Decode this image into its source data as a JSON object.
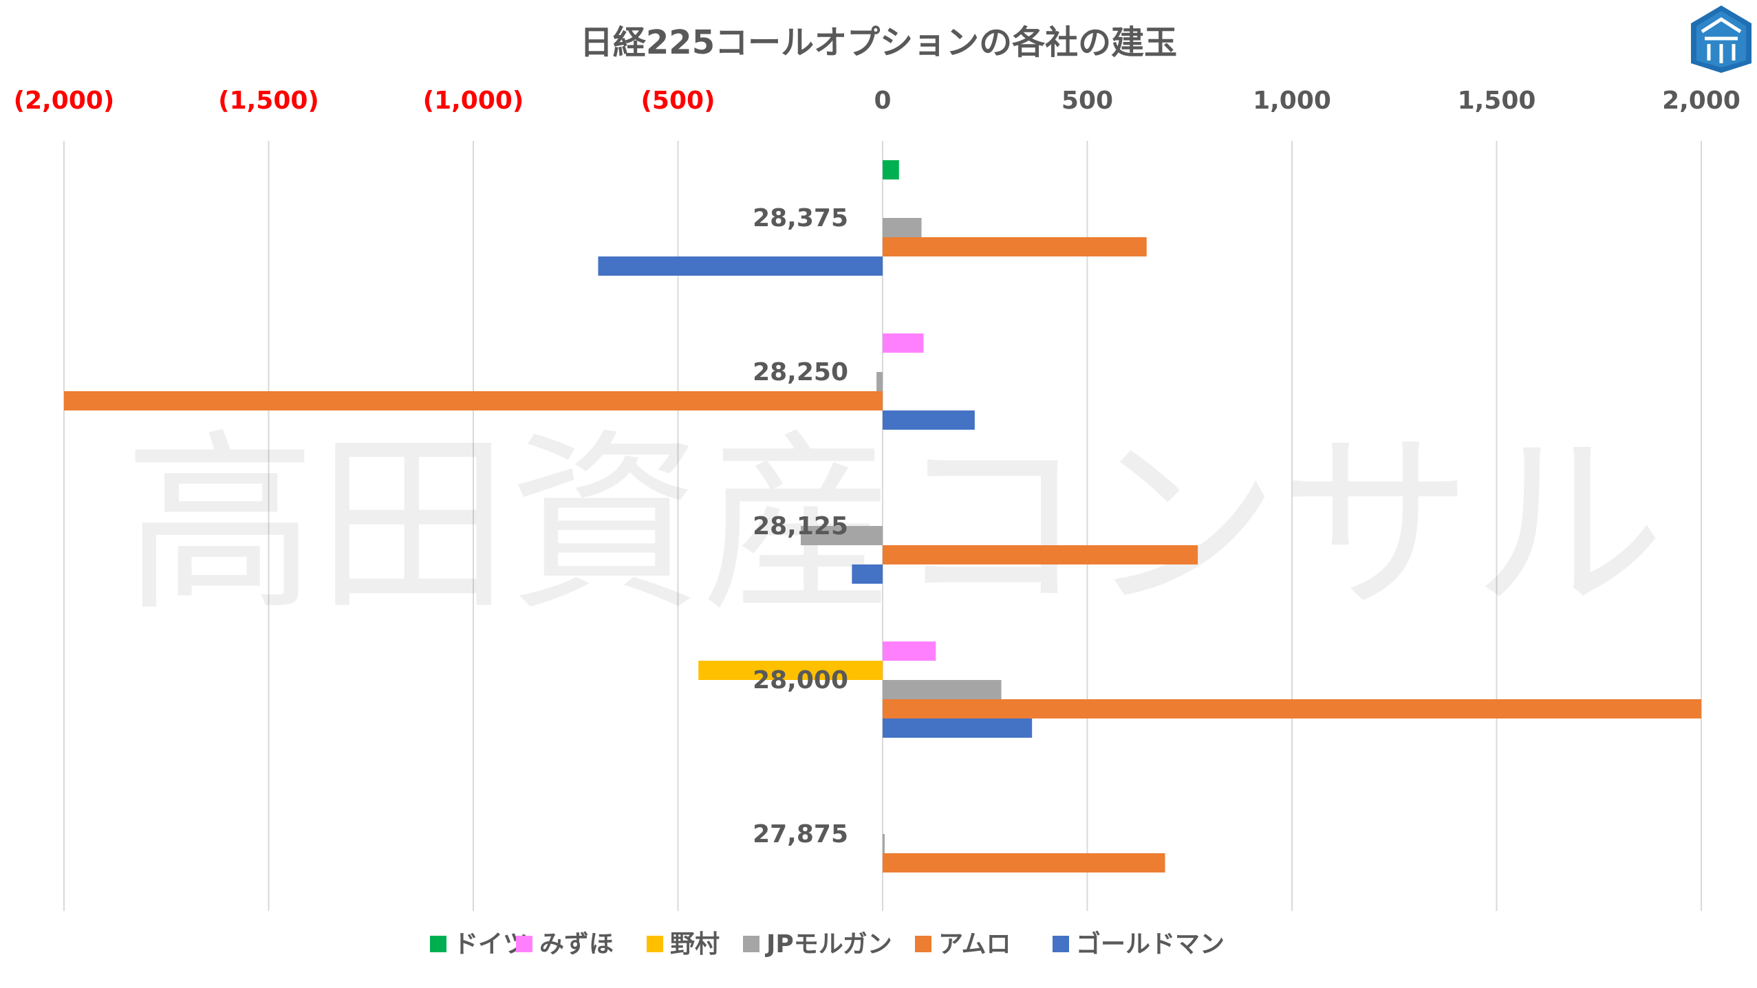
{
  "watermark": "高田資産コンサル",
  "logo": {
    "name": "takata-logo"
  },
  "chart_data": {
    "type": "bar",
    "orientation": "horizontal",
    "title": "日経225コールオプションの各社の建玉",
    "categories": [
      "28,375",
      "28,250",
      "28,125",
      "28,000",
      "27,875"
    ],
    "xlim": [
      -2000,
      2000
    ],
    "ticks": [
      -2000,
      -1500,
      -1000,
      -500,
      0,
      500,
      1000,
      1500,
      2000
    ],
    "tick_labels": [
      "(2,000)",
      "(1,500)",
      "(1,000)",
      "(500)",
      "0",
      "500",
      "1,000",
      "1,500",
      "2,000"
    ],
    "tick_colors": {
      "negative": "#FF0000",
      "nonnegative": "#595959"
    },
    "grid": "vertical",
    "legend_position": "bottom",
    "series": [
      {
        "name": "ドイツ",
        "color": "#00B050",
        "values": [
          40,
          0,
          0,
          0,
          0
        ]
      },
      {
        "name": "みずほ",
        "color": "#FF80FF",
        "values": [
          0,
          100,
          0,
          130,
          0
        ]
      },
      {
        "name": "野村",
        "color": "#FFC000",
        "values": [
          0,
          0,
          0,
          -450,
          0
        ]
      },
      {
        "name": "JPモルガン",
        "color": "#A5A5A5",
        "values": [
          95,
          -15,
          -200,
          290,
          5
        ]
      },
      {
        "name": "アムロ",
        "color": "#ED7D31",
        "values": [
          645,
          -2000,
          770,
          2000,
          690
        ]
      },
      {
        "name": "ゴールドマン",
        "color": "#4472C4",
        "values": [
          -695,
          225,
          -75,
          365,
          0
        ]
      }
    ]
  }
}
